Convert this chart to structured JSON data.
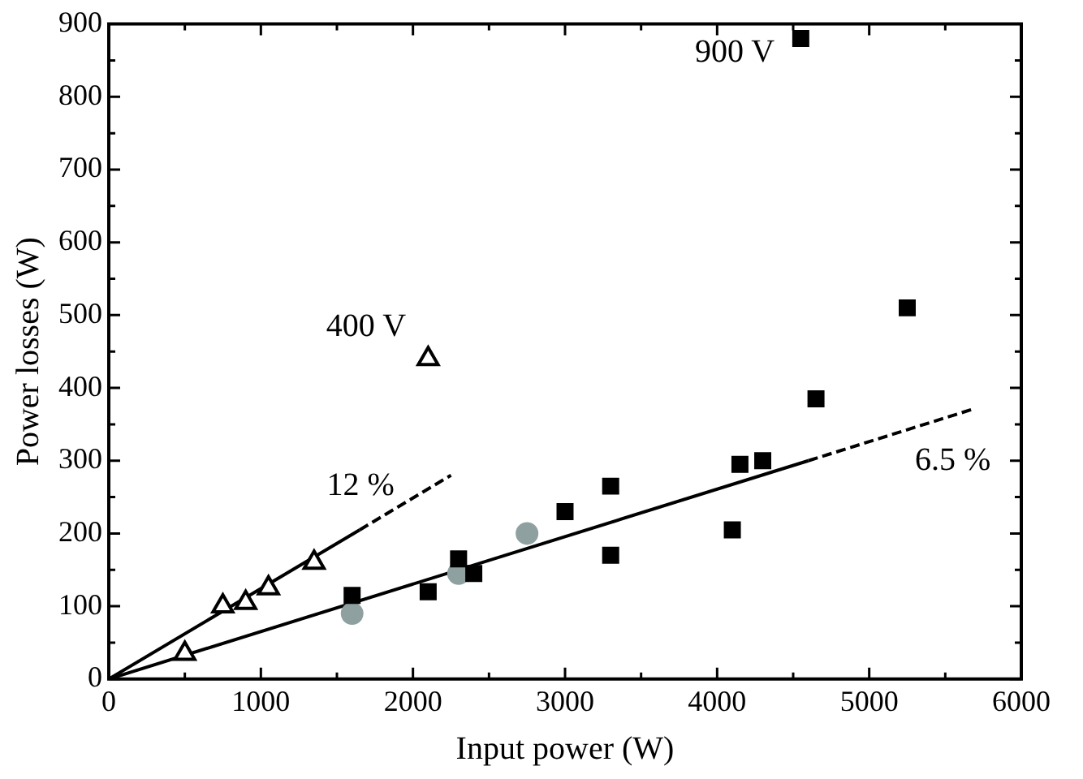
{
  "chart_data": {
    "type": "scatter",
    "xlabel": "Input power (W)",
    "ylabel": "Power losses (W)",
    "xlim": [
      0,
      6000
    ],
    "ylim": [
      0,
      900
    ],
    "xticks": [
      0,
      {
        "value": 500,
        "label": null
      },
      1000,
      {
        "value": 1500,
        "label": null
      },
      2000,
      {
        "value": 2500,
        "label": null
      },
      3000,
      {
        "value": 3500,
        "label": null
      },
      4000,
      {
        "value": 4500,
        "label": null
      },
      5000,
      {
        "value": 5500,
        "label": null
      },
      6000
    ],
    "yticks": [
      0,
      {
        "value": 50,
        "label": null
      },
      100,
      {
        "value": 150,
        "label": null
      },
      200,
      {
        "value": 250,
        "label": null
      },
      300,
      {
        "value": 350,
        "label": null
      },
      400,
      {
        "value": 450,
        "label": null
      },
      500,
      {
        "value": 550,
        "label": null
      },
      600,
      {
        "value": 650,
        "label": null
      },
      700,
      {
        "value": 750,
        "label": null
      },
      800,
      {
        "value": 850,
        "label": null
      },
      900
    ],
    "series": [
      {
        "type": "scatter",
        "marker": "square",
        "color": "#000000",
        "x": [
          1600,
          2100,
          2300,
          2400,
          3000,
          3300,
          3300,
          4100,
          4150,
          4300,
          4650,
          5250,
          4550
        ],
        "values": [
          115,
          120,
          165,
          145,
          230,
          265,
          170,
          205,
          295,
          300,
          385,
          510,
          880
        ]
      },
      {
        "type": "scatter",
        "marker": "triangle",
        "color": "#000000",
        "x": [
          500,
          750,
          900,
          1050,
          1350,
          2100
        ],
        "values": [
          35,
          100,
          105,
          125,
          160,
          440
        ]
      },
      {
        "type": "scatter",
        "marker": "circle",
        "color": "#8fa0a0",
        "x": [
          1600,
          2300,
          2750
        ],
        "values": [
          90,
          145,
          200
        ]
      },
      {
        "type": "line",
        "marker": "none",
        "line_style": "solid",
        "color": "#000000",
        "x": [
          0,
          4600
        ],
        "values": [
          0,
          300
        ]
      },
      {
        "type": "line",
        "marker": "none",
        "line_style": "dashed",
        "color": "#000000",
        "x": [
          4600,
          5700
        ],
        "values": [
          300,
          372
        ]
      },
      {
        "type": "line",
        "marker": "none",
        "line_style": "solid",
        "color": "#000000",
        "x": [
          0,
          1650
        ],
        "values": [
          0,
          205
        ]
      },
      {
        "type": "line",
        "marker": "none",
        "line_style": "dashed",
        "color": "#000000",
        "x": [
          1650,
          2250
        ],
        "values": [
          205,
          280
        ]
      }
    ],
    "annotations": [
      "900 V",
      "400 V",
      "12 %",
      "6.5 %"
    ]
  }
}
